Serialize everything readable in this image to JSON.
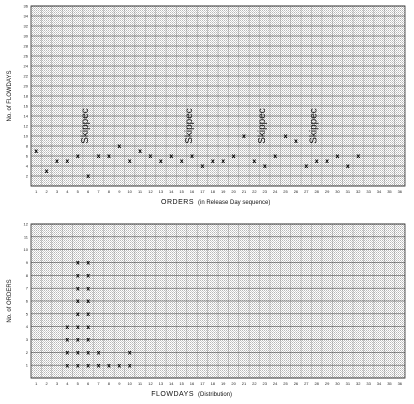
{
  "chart_data": [
    {
      "type": "scatter",
      "ylabel": "No. of FLOWDAYS",
      "xlabel": "ORDERS",
      "xlabel_note": "(in Release Day sequence)",
      "x_ticks": [
        1,
        2,
        3,
        4,
        5,
        6,
        7,
        8,
        9,
        10,
        11,
        12,
        13,
        14,
        15,
        16,
        17,
        18,
        19,
        20,
        21,
        22,
        23,
        24,
        25,
        26,
        27,
        28,
        29,
        30,
        31,
        32,
        33,
        34,
        35,
        36
      ],
      "y_ticks": [
        2,
        4,
        6,
        8,
        10,
        12,
        14,
        16,
        18,
        20,
        22,
        24,
        26,
        28,
        30,
        32,
        34,
        36
      ],
      "xlim": [
        1,
        36
      ],
      "ylim": [
        0,
        36
      ],
      "marker": "x",
      "points": [
        {
          "x": 1,
          "y": 7
        },
        {
          "x": 2,
          "y": 3
        },
        {
          "x": 3,
          "y": 5
        },
        {
          "x": 4,
          "y": 5
        },
        {
          "x": 5,
          "y": 6
        },
        {
          "x": 6,
          "y": 2
        },
        {
          "x": 7,
          "y": 6
        },
        {
          "x": 8,
          "y": 6
        },
        {
          "x": 9,
          "y": 8
        },
        {
          "x": 10,
          "y": 5
        },
        {
          "x": 11,
          "y": 7
        },
        {
          "x": 12,
          "y": 6
        },
        {
          "x": 13,
          "y": 5
        },
        {
          "x": 14,
          "y": 6
        },
        {
          "x": 15,
          "y": 5
        },
        {
          "x": 16,
          "y": 6
        },
        {
          "x": 17,
          "y": 4
        },
        {
          "x": 18,
          "y": 5
        },
        {
          "x": 19,
          "y": 5
        },
        {
          "x": 20,
          "y": 6
        },
        {
          "x": 21,
          "y": 10
        },
        {
          "x": 22,
          "y": 5
        },
        {
          "x": 23,
          "y": 4
        },
        {
          "x": 24,
          "y": 6
        },
        {
          "x": 25,
          "y": 10
        },
        {
          "x": 26,
          "y": 9
        },
        {
          "x": 27,
          "y": 4
        },
        {
          "x": 28,
          "y": 5
        },
        {
          "x": 29,
          "y": 5
        },
        {
          "x": 30,
          "y": 6
        },
        {
          "x": 31,
          "y": 4
        },
        {
          "x": 32,
          "y": 6
        }
      ],
      "annotations": [
        {
          "text": "Skippec",
          "x": 6,
          "y": 12
        },
        {
          "text": "Skippec",
          "x": 16,
          "y": 12
        },
        {
          "text": "Skippec",
          "x": 23,
          "y": 12
        },
        {
          "text": "Skippec",
          "x": 28,
          "y": 12
        }
      ],
      "grid": true
    },
    {
      "type": "scatter",
      "ylabel": "No. of ORDERS",
      "xlabel": "FLOWDAYS",
      "xlabel_note": "(Distribution)",
      "x_ticks": [
        1,
        2,
        3,
        4,
        5,
        6,
        7,
        8,
        9,
        10,
        11,
        12,
        13,
        14,
        15,
        16,
        17,
        18,
        19,
        20,
        21,
        22,
        23,
        24,
        25,
        26,
        27,
        28,
        29,
        30,
        31,
        32,
        33,
        34,
        35,
        36
      ],
      "y_ticks": [
        1,
        2,
        3,
        4,
        5,
        6,
        7,
        8,
        9,
        10,
        11,
        12
      ],
      "xlim": [
        1,
        36
      ],
      "ylim": [
        0,
        12
      ],
      "marker": "x",
      "points": [
        {
          "x": 4,
          "y": 1
        },
        {
          "x": 4,
          "y": 2
        },
        {
          "x": 4,
          "y": 3
        },
        {
          "x": 4,
          "y": 4
        },
        {
          "x": 5,
          "y": 1
        },
        {
          "x": 5,
          "y": 2
        },
        {
          "x": 5,
          "y": 3
        },
        {
          "x": 5,
          "y": 4
        },
        {
          "x": 5,
          "y": 5
        },
        {
          "x": 5,
          "y": 6
        },
        {
          "x": 5,
          "y": 7
        },
        {
          "x": 5,
          "y": 8
        },
        {
          "x": 5,
          "y": 9
        },
        {
          "x": 6,
          "y": 1
        },
        {
          "x": 6,
          "y": 2
        },
        {
          "x": 6,
          "y": 3
        },
        {
          "x": 6,
          "y": 4
        },
        {
          "x": 6,
          "y": 5
        },
        {
          "x": 6,
          "y": 6
        },
        {
          "x": 6,
          "y": 7
        },
        {
          "x": 6,
          "y": 8
        },
        {
          "x": 6,
          "y": 9
        },
        {
          "x": 7,
          "y": 1
        },
        {
          "x": 7,
          "y": 2
        },
        {
          "x": 8,
          "y": 1
        },
        {
          "x": 9,
          "y": 1
        },
        {
          "x": 10,
          "y": 1
        },
        {
          "x": 10,
          "y": 2
        }
      ],
      "grid": true
    }
  ]
}
